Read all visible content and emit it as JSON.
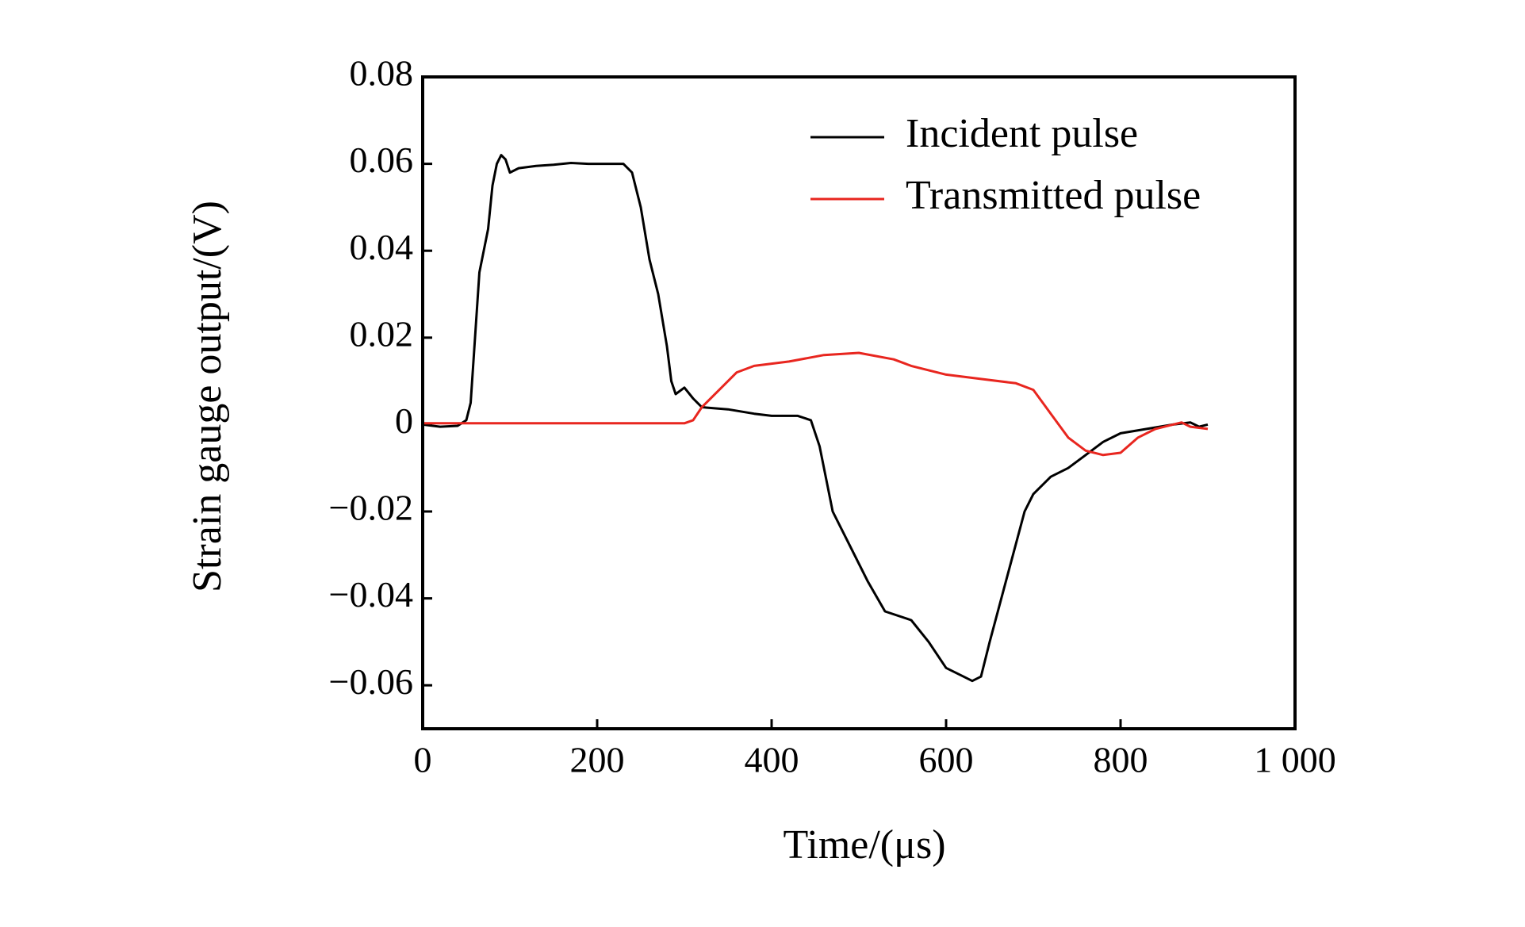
{
  "chart_data": {
    "type": "line",
    "xlabel": "Time/(μs)",
    "ylabel": "Strain gauge output/(V)",
    "xlim": [
      0,
      1000
    ],
    "xticks": [
      0,
      200,
      400,
      600,
      800,
      {
        "value": 1000,
        "label": "1 000"
      }
    ],
    "ylim": [
      -0.07,
      0.08
    ],
    "yticks": [
      {
        "value": -0.06,
        "label": "−0.06"
      },
      {
        "value": -0.04,
        "label": "−0.04"
      },
      {
        "value": -0.02,
        "label": "−0.02"
      },
      0,
      0.02,
      0.04,
      0.06,
      0.08
    ],
    "legend": "upper right",
    "series": [
      {
        "name": "Incident pulse",
        "color": "#000000",
        "x": [
          0,
          20,
          40,
          50,
          55,
          60,
          65,
          70,
          75,
          80,
          85,
          90,
          95,
          100,
          110,
          130,
          150,
          170,
          190,
          210,
          230,
          240,
          250,
          260,
          270,
          280,
          285,
          290,
          300,
          310,
          320,
          350,
          380,
          400,
          430,
          445,
          455,
          470,
          490,
          510,
          530,
          560,
          580,
          600,
          620,
          630,
          640,
          650,
          670,
          690,
          700,
          720,
          740,
          760,
          780,
          800,
          830,
          860,
          880,
          890,
          900
        ],
        "values": [
          0,
          -0.0005,
          -0.0003,
          0.001,
          0.005,
          0.02,
          0.035,
          0.04,
          0.045,
          0.055,
          0.06,
          0.062,
          0.061,
          0.058,
          0.059,
          0.0595,
          0.0598,
          0.0602,
          0.06,
          0.06,
          0.06,
          0.058,
          0.05,
          0.038,
          0.03,
          0.018,
          0.01,
          0.007,
          0.0085,
          0.006,
          0.004,
          0.0035,
          0.0025,
          0.002,
          0.002,
          0.001,
          -0.005,
          -0.02,
          -0.028,
          -0.036,
          -0.043,
          -0.045,
          -0.05,
          -0.056,
          -0.058,
          -0.059,
          -0.058,
          -0.05,
          -0.035,
          -0.02,
          -0.016,
          -0.012,
          -0.01,
          -0.007,
          -0.004,
          -0.002,
          -0.001,
          0,
          0.0005,
          -0.0005,
          0
        ]
      },
      {
        "name": "Transmitted pulse",
        "color": "#e8261f",
        "x": [
          0,
          300,
          310,
          320,
          340,
          360,
          380,
          420,
          460,
          500,
          540,
          560,
          580,
          600,
          640,
          680,
          700,
          720,
          740,
          760,
          780,
          800,
          820,
          840,
          860,
          870,
          880,
          900
        ],
        "values": [
          0.0003,
          0.0003,
          0.001,
          0.004,
          0.008,
          0.012,
          0.0135,
          0.0145,
          0.016,
          0.0165,
          0.015,
          0.0135,
          0.0125,
          0.0115,
          0.0105,
          0.0095,
          0.008,
          0.0025,
          -0.003,
          -0.006,
          -0.007,
          -0.0065,
          -0.003,
          -0.001,
          0,
          0.0005,
          -0.0005,
          -0.001
        ]
      }
    ]
  }
}
